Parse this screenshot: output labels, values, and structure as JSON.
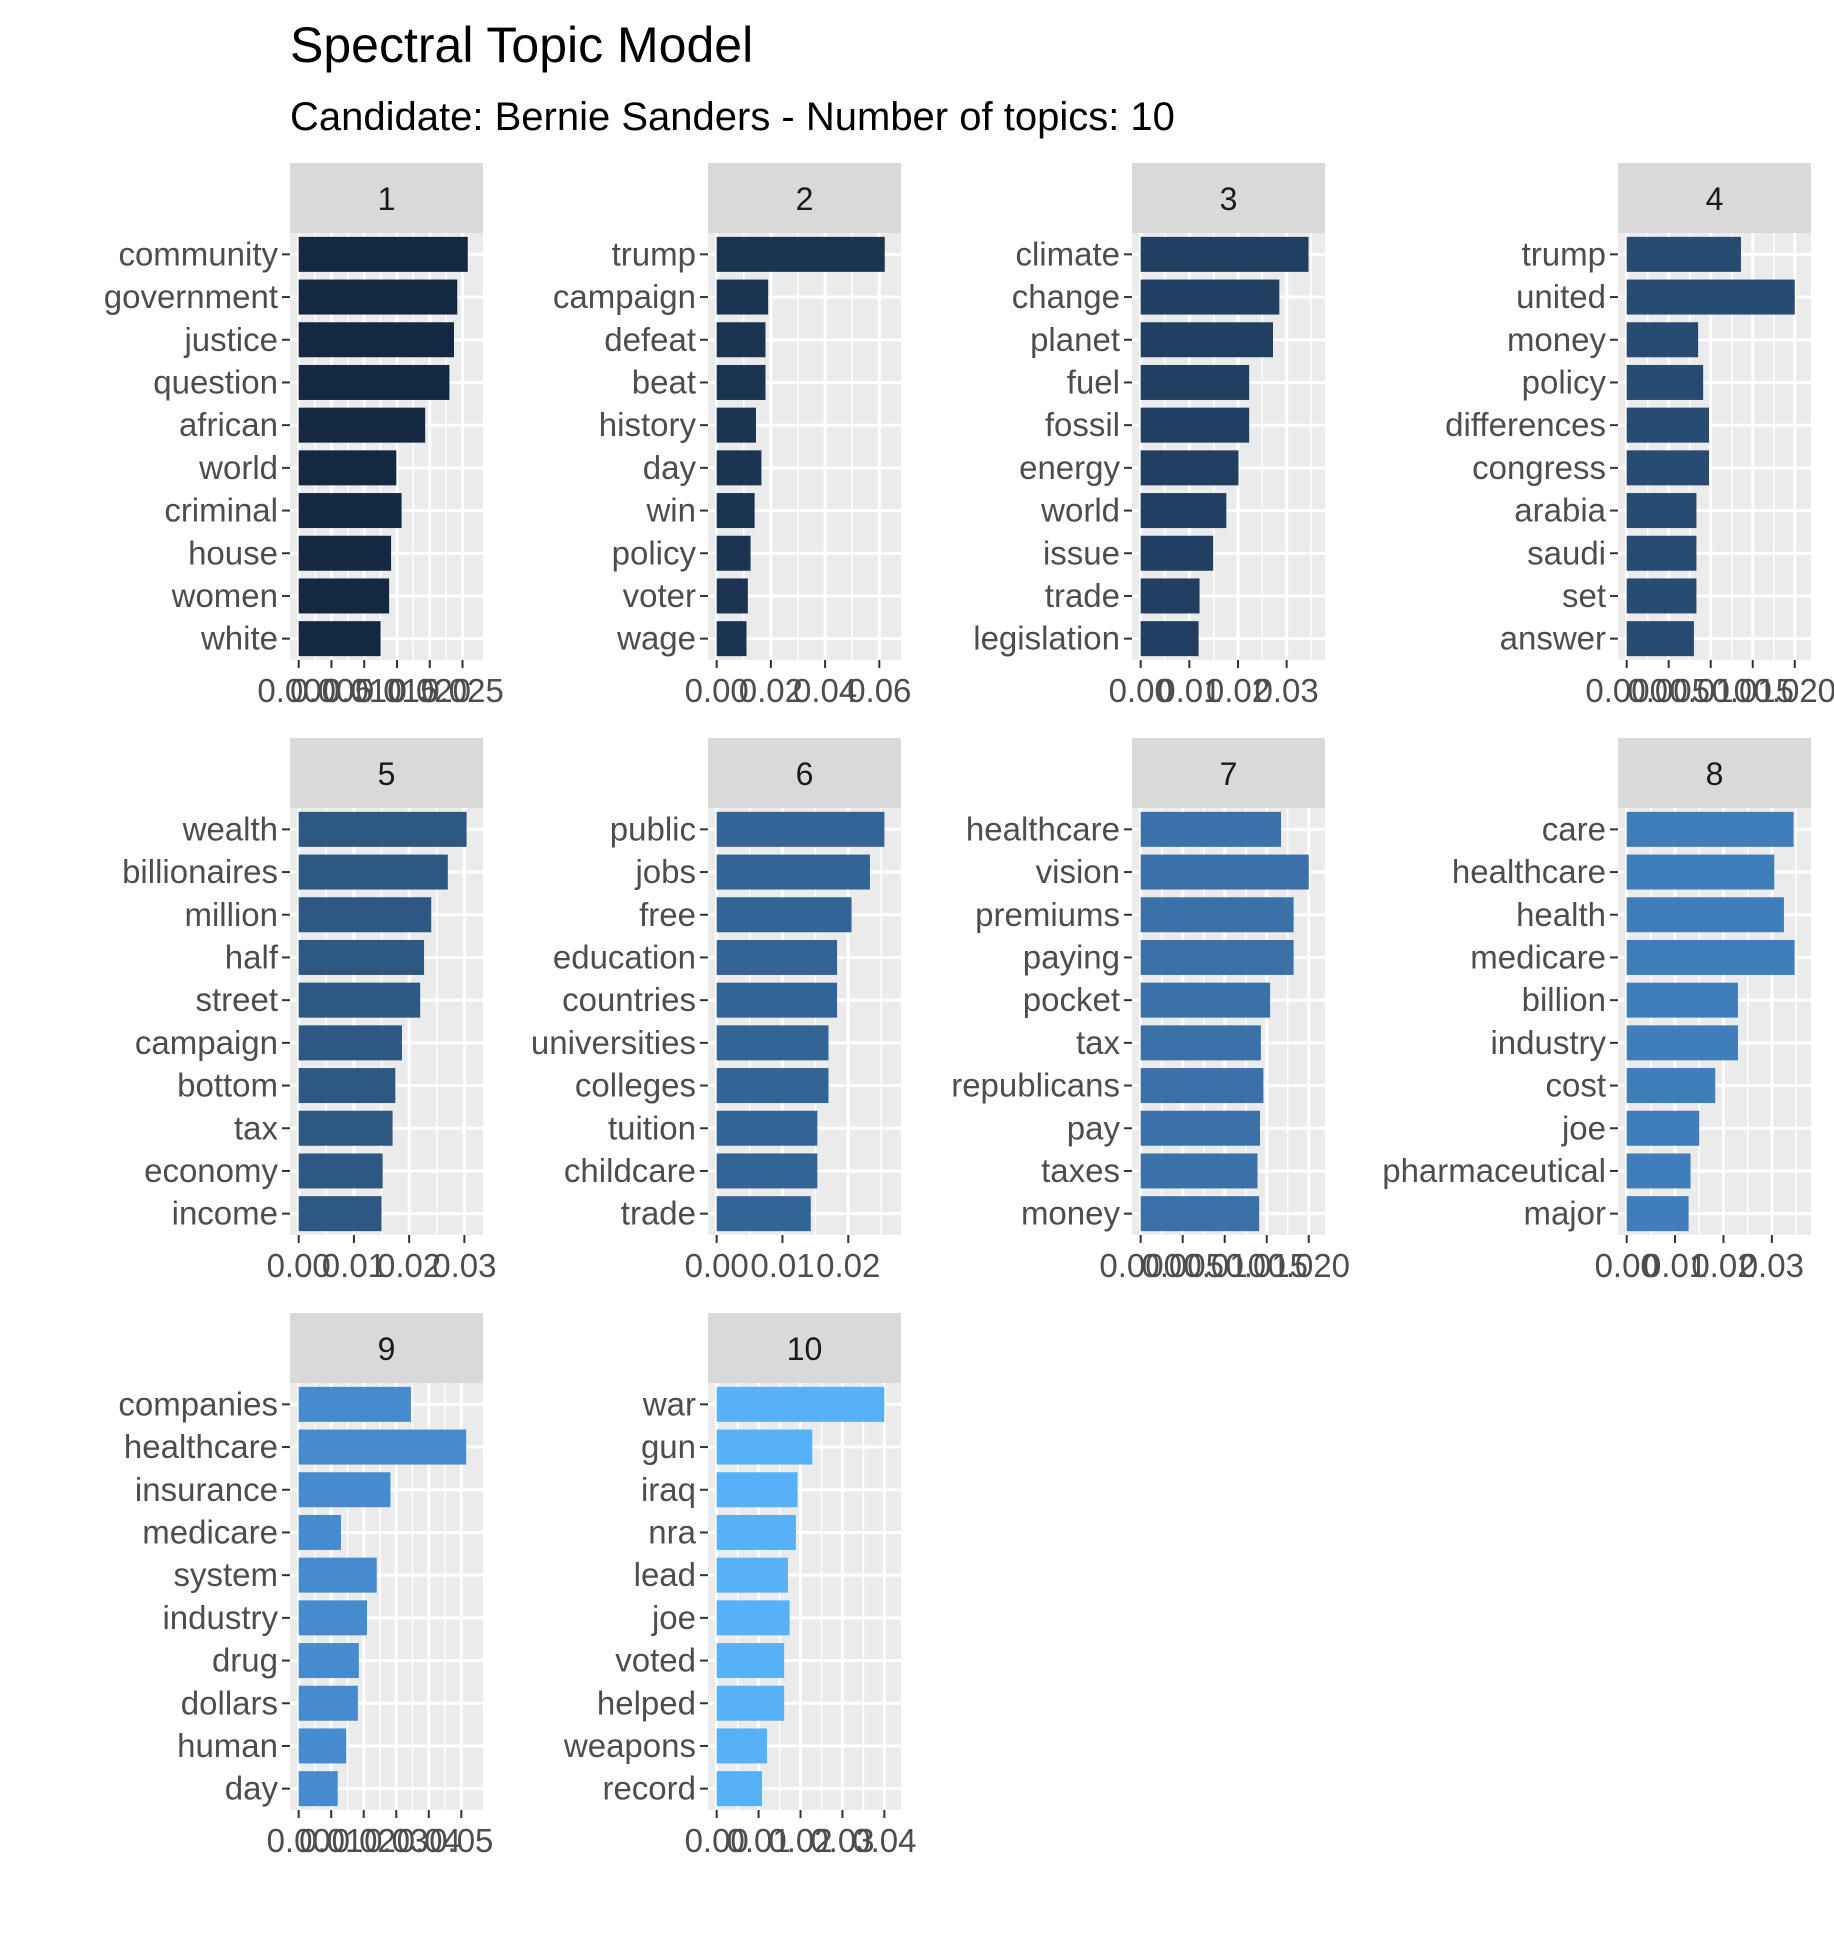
{
  "title": "Spectral Topic Model",
  "subtitle": "Candidate: Bernie Sanders - Number of topics: 10",
  "chart_data": [
    {
      "type": "bar",
      "orientation": "horizontal",
      "facet": "1",
      "color": "#142941",
      "categories": [
        "community",
        "government",
        "justice",
        "question",
        "african",
        "world",
        "criminal",
        "house",
        "women",
        "white"
      ],
      "values": [
        0.0258,
        0.0242,
        0.0237,
        0.023,
        0.0193,
        0.0149,
        0.0157,
        0.0141,
        0.0138,
        0.0125
      ],
      "xlim": [
        0,
        0.0268
      ],
      "ticks": [
        0,
        0.005,
        0.01,
        0.015,
        0.02,
        0.025
      ],
      "tick_labels": [
        "0.000",
        "0.005",
        "0.010",
        "0.015",
        "0.020",
        "0.025"
      ]
    },
    {
      "type": "bar",
      "orientation": "horizontal",
      "facet": "2",
      "color": "#1a3452",
      "categories": [
        "trump",
        "campaign",
        "defeat",
        "beat",
        "history",
        "day",
        "win",
        "policy",
        "voter",
        "wage"
      ],
      "values": [
        0.062,
        0.019,
        0.018,
        0.018,
        0.0145,
        0.0165,
        0.014,
        0.0125,
        0.0115,
        0.011
      ],
      "xlim": [
        0,
        0.0648
      ],
      "ticks": [
        0,
        0.02,
        0.04,
        0.06
      ],
      "tick_labels": [
        "0.00",
        "0.02",
        "0.04",
        "0.06"
      ]
    },
    {
      "type": "bar",
      "orientation": "horizontal",
      "facet": "3",
      "color": "#213f61",
      "categories": [
        "climate",
        "change",
        "planet",
        "fuel",
        "fossil",
        "energy",
        "world",
        "issue",
        "trade",
        "legislation"
      ],
      "values": [
        0.0345,
        0.0285,
        0.0272,
        0.0223,
        0.0223,
        0.0201,
        0.0176,
        0.0149,
        0.0121,
        0.0119
      ],
      "xlim": [
        0,
        0.0361
      ],
      "ticks": [
        0,
        0.01,
        0.02,
        0.03
      ],
      "tick_labels": [
        "0.00",
        "0.01",
        "0.02",
        "0.03"
      ]
    },
    {
      "type": "bar",
      "orientation": "horizontal",
      "facet": "4",
      "color": "#284b72",
      "categories": [
        "trump",
        "united",
        "money",
        "policy",
        "differences",
        "congress",
        "arabia",
        "saudi",
        "set",
        "answer"
      ],
      "values": [
        0.0136,
        0.02,
        0.0085,
        0.0091,
        0.0098,
        0.0098,
        0.0083,
        0.0083,
        0.0083,
        0.008
      ],
      "xlim": [
        0,
        0.0209
      ],
      "ticks": [
        0,
        0.005,
        0.01,
        0.015,
        0.02
      ],
      "tick_labels": [
        "0.000",
        "0.005",
        "0.010",
        "0.015",
        "0.020"
      ]
    },
    {
      "type": "bar",
      "orientation": "horizontal",
      "facet": "5",
      "color": "#2d5884",
      "categories": [
        "wealth",
        "billionaires",
        "million",
        "half",
        "street",
        "campaign",
        "bottom",
        "tax",
        "economy",
        "income"
      ],
      "values": [
        0.0304,
        0.027,
        0.024,
        0.0227,
        0.022,
        0.0187,
        0.0175,
        0.017,
        0.0152,
        0.015
      ],
      "xlim": [
        0,
        0.0318
      ],
      "ticks": [
        0,
        0.01,
        0.02,
        0.03
      ],
      "tick_labels": [
        "0.00",
        "0.01",
        "0.02",
        "0.03"
      ]
    },
    {
      "type": "bar",
      "orientation": "horizontal",
      "facet": "6",
      "color": "#336496",
      "categories": [
        "public",
        "jobs",
        "free",
        "education",
        "countries",
        "universities",
        "colleges",
        "tuition",
        "childcare",
        "trade"
      ],
      "values": [
        0.0255,
        0.0233,
        0.0205,
        0.0183,
        0.0183,
        0.017,
        0.017,
        0.0153,
        0.0153,
        0.0143
      ],
      "xlim": [
        0,
        0.0267
      ],
      "ticks": [
        0,
        0.01,
        0.02
      ],
      "tick_labels": [
        "0.00",
        "0.01",
        "0.02"
      ]
    },
    {
      "type": "bar",
      "orientation": "horizontal",
      "facet": "7",
      "color": "#3a71a9",
      "categories": [
        "healthcare",
        "vision",
        "premiums",
        "paying",
        "pocket",
        "tax",
        "republicans",
        "pay",
        "taxes",
        "money"
      ],
      "values": [
        0.0167,
        0.02,
        0.0182,
        0.0182,
        0.0154,
        0.0143,
        0.0146,
        0.0142,
        0.0139,
        0.0141
      ],
      "xlim": [
        0,
        0.0209
      ],
      "ticks": [
        0,
        0.005,
        0.01,
        0.015,
        0.02
      ],
      "tick_labels": [
        "0.000",
        "0.005",
        "0.010",
        "0.015",
        "0.020"
      ]
    },
    {
      "type": "bar",
      "orientation": "horizontal",
      "facet": "8",
      "color": "#407ebb",
      "categories": [
        "care",
        "healthcare",
        "health",
        "medicare",
        "billion",
        "industry",
        "cost",
        "joe",
        "pharmaceutical",
        "major"
      ],
      "values": [
        0.0345,
        0.0305,
        0.0325,
        0.0347,
        0.023,
        0.023,
        0.0183,
        0.015,
        0.0132,
        0.0128
      ],
      "xlim": [
        0,
        0.0363
      ],
      "ticks": [
        0,
        0.01,
        0.02,
        0.03
      ],
      "tick_labels": [
        "0.00",
        "0.01",
        "0.02",
        "0.03"
      ]
    },
    {
      "type": "bar",
      "orientation": "horizontal",
      "facet": "9",
      "color": "#468bcd",
      "categories": [
        "companies",
        "healthcare",
        "insurance",
        "medicare",
        "system",
        "industry",
        "drug",
        "dollars",
        "human",
        "day"
      ],
      "values": [
        0.0345,
        0.0515,
        0.0282,
        0.013,
        0.024,
        0.021,
        0.0185,
        0.0182,
        0.0146,
        0.012
      ],
      "xlim": [
        0,
        0.054
      ],
      "ticks": [
        0,
        0.01,
        0.02,
        0.03,
        0.04,
        0.05
      ],
      "tick_labels": [
        "0.00",
        "0.01",
        "0.02",
        "0.03",
        "0.04",
        "0.05"
      ]
    },
    {
      "type": "bar",
      "orientation": "horizontal",
      "facet": "10",
      "color": "#56b1f7",
      "categories": [
        "war",
        "gun",
        "iraq",
        "nra",
        "lead",
        "joe",
        "voted",
        "helped",
        "weapons",
        "record"
      ],
      "values": [
        0.04,
        0.0228,
        0.0193,
        0.0189,
        0.017,
        0.0174,
        0.0161,
        0.0161,
        0.012,
        0.0108
      ],
      "xlim": [
        0,
        0.0419
      ],
      "ticks": [
        0,
        0.01,
        0.02,
        0.03,
        0.04
      ],
      "tick_labels": [
        "0.00",
        "0.01",
        "0.02",
        "0.03",
        "0.04"
      ]
    }
  ]
}
